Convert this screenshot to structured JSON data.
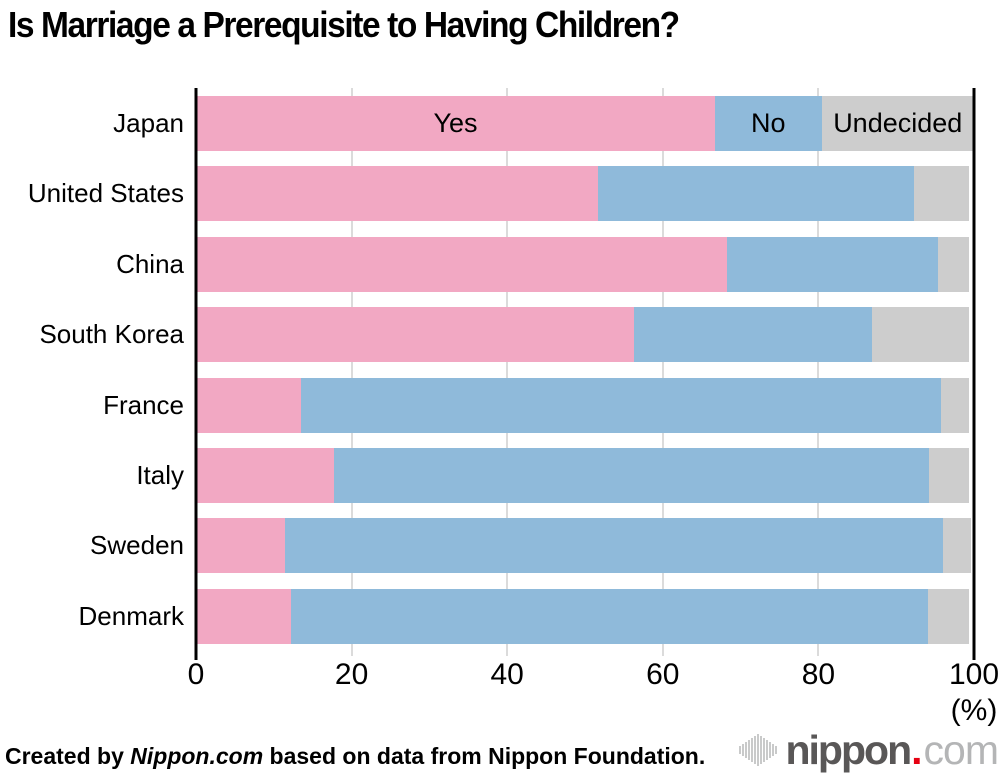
{
  "chart_data": {
    "type": "bar",
    "orientation": "horizontal-stacked",
    "title": "Is Marriage a Prerequisite to Having Children?",
    "categories": [
      "Japan",
      "United States",
      "China",
      "South Korea",
      "France",
      "Italy",
      "Sweden",
      "Denmark"
    ],
    "series": [
      {
        "name": "Yes",
        "color": "#F2A8C3",
        "values": [
          66.7,
          51.7,
          68.2,
          56.3,
          13.5,
          17.7,
          11.5,
          12.2
        ]
      },
      {
        "name": "No",
        "color": "#8FBADA",
        "values": [
          13.7,
          40.6,
          27.2,
          30.6,
          82.2,
          76.5,
          84.5,
          81.9
        ]
      },
      {
        "name": "Undecided",
        "color": "#CDCDCD",
        "values": [
          19.6,
          7.1,
          4.0,
          12.4,
          3.6,
          5.1,
          3.6,
          5.3
        ]
      }
    ],
    "xticks": [
      0,
      20,
      40,
      60,
      80,
      100
    ],
    "xlim": [
      0,
      100
    ],
    "x_unit_label": "(%)",
    "grid": "vertical-lines-at-20-40-60-80",
    "legend": "series labels written inside first (Japan) bar",
    "colors": {
      "grid": "#DBDBDB",
      "axis": "#000000"
    }
  },
  "footer": {
    "prefix": "Created by ",
    "site": "Nippon.com",
    "suffix": " based on data from Nippon Foundation."
  },
  "logo": {
    "icon": "waveform-icon",
    "name": "nippon",
    "dot": ".",
    "tld": "com",
    "colors": {
      "name": "#595757",
      "dot": "#E60012",
      "tld": "#B4B5B6",
      "icon": "#C9CACA"
    }
  }
}
